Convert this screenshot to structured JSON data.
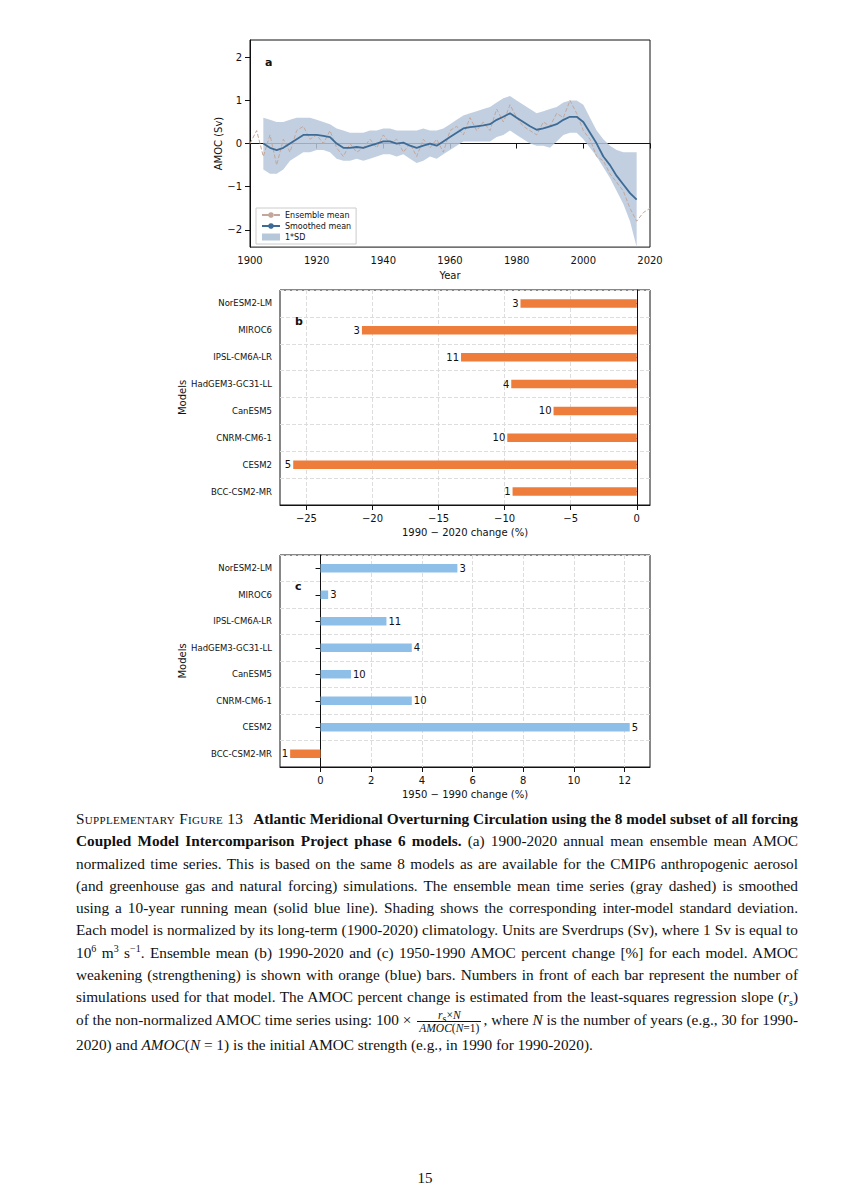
{
  "chart_data": [
    {
      "type": "line",
      "title": "a",
      "xlabel": "Year",
      "ylabel": "AMOC (Sv)",
      "x": [
        1900,
        1902,
        1904,
        1906,
        1908,
        1910,
        1912,
        1914,
        1916,
        1918,
        1920,
        1922,
        1924,
        1926,
        1928,
        1930,
        1932,
        1934,
        1936,
        1938,
        1940,
        1942,
        1944,
        1946,
        1948,
        1950,
        1952,
        1954,
        1956,
        1958,
        1960,
        1962,
        1964,
        1966,
        1968,
        1970,
        1972,
        1974,
        1976,
        1978,
        1980,
        1982,
        1984,
        1986,
        1988,
        1990,
        1992,
        1994,
        1996,
        1998,
        2000,
        2002,
        2004,
        2006,
        2008,
        2010,
        2012,
        2014,
        2016,
        2018,
        2020
      ],
      "series": [
        {
          "name": "Ensemble mean",
          "type": "line",
          "color": "#c4a69a",
          "line_style": "dashed",
          "values": [
            0.0,
            0.3,
            -0.3,
            0.2,
            -0.5,
            0.1,
            -0.2,
            0.3,
            0.4,
            0.1,
            0.2,
            0.0,
            0.3,
            -0.1,
            -0.3,
            0.0,
            -0.2,
            -0.1,
            0.1,
            -0.1,
            0.2,
            0.0,
            0.1,
            -0.2,
            0.0,
            -0.3,
            0.1,
            -0.1,
            0.1,
            -0.2,
            0.3,
            0.4,
            0.2,
            0.6,
            0.3,
            0.5,
            0.3,
            0.8,
            0.5,
            0.9,
            0.6,
            0.4,
            0.3,
            0.2,
            0.5,
            0.4,
            0.7,
            0.6,
            1.0,
            0.7,
            0.3,
            0.1,
            -0.3,
            -0.4,
            -0.7,
            -0.9,
            -1.1,
            -1.5,
            -1.8,
            -1.6,
            -1.5
          ]
        },
        {
          "name": "Smoothed mean",
          "type": "line",
          "color": "#3d6b96",
          "line_style": "solid",
          "values": [
            null,
            null,
            0.0,
            -0.1,
            -0.15,
            -0.1,
            0.0,
            0.1,
            0.2,
            0.2,
            0.2,
            0.18,
            0.15,
            0.0,
            -0.1,
            -0.1,
            -0.08,
            -0.1,
            -0.05,
            0.0,
            0.05,
            0.05,
            0.0,
            0.02,
            -0.05,
            -0.1,
            -0.05,
            0.0,
            -0.05,
            0.05,
            0.15,
            0.25,
            0.35,
            0.38,
            0.4,
            0.42,
            0.45,
            0.55,
            0.62,
            0.7,
            0.6,
            0.5,
            0.4,
            0.32,
            0.35,
            0.4,
            0.45,
            0.55,
            0.62,
            0.62,
            0.5,
            0.25,
            0.0,
            -0.3,
            -0.5,
            -0.75,
            -0.95,
            -1.15,
            -1.3,
            null,
            null
          ]
        },
        {
          "name": "1*SD",
          "type": "band",
          "color": "#b6c7da",
          "lower": [
            null,
            null,
            -0.6,
            -0.7,
            -0.7,
            -0.6,
            -0.4,
            -0.3,
            -0.2,
            -0.2,
            -0.15,
            -0.15,
            -0.2,
            -0.35,
            -0.4,
            -0.4,
            -0.35,
            -0.4,
            -0.35,
            -0.3,
            -0.25,
            -0.25,
            -0.3,
            -0.25,
            -0.35,
            -0.45,
            -0.4,
            -0.3,
            -0.35,
            -0.25,
            -0.15,
            -0.05,
            0.05,
            0.05,
            0.05,
            0.05,
            0.05,
            0.15,
            0.2,
            0.3,
            0.2,
            0.1,
            0.0,
            -0.05,
            -0.05,
            -0.1,
            0.05,
            0.2,
            0.25,
            0.25,
            0.1,
            -0.1,
            -0.3,
            -0.55,
            -0.8,
            -1.1,
            -1.4,
            -1.8,
            -2.4,
            null,
            null
          ],
          "upper": [
            null,
            null,
            0.6,
            0.55,
            0.5,
            0.5,
            0.55,
            0.6,
            0.6,
            0.6,
            0.55,
            0.5,
            0.45,
            0.35,
            0.3,
            0.25,
            0.25,
            0.25,
            0.3,
            0.3,
            0.35,
            0.35,
            0.3,
            0.3,
            0.3,
            0.3,
            0.35,
            0.3,
            0.3,
            0.35,
            0.45,
            0.55,
            0.65,
            0.7,
            0.75,
            0.8,
            0.85,
            0.95,
            1.05,
            1.1,
            1.0,
            0.9,
            0.8,
            0.7,
            0.75,
            0.8,
            0.85,
            0.95,
            1.0,
            1.0,
            0.9,
            0.6,
            0.3,
            0.1,
            -0.05,
            -0.15,
            -0.2,
            -0.2,
            -0.2,
            null,
            null
          ]
        }
      ],
      "xlim": [
        1900,
        2020
      ],
      "xticks": [
        1900,
        1920,
        1940,
        1960,
        1980,
        2000,
        2020
      ],
      "ylim": [
        -2.4,
        2.4
      ],
      "yticks": [
        {
          "value": -2,
          "label": "−2"
        },
        {
          "value": -1,
          "label": "−1"
        },
        0,
        1,
        2
      ],
      "legend": "lower left",
      "grid": false
    },
    {
      "type": "bar",
      "orientation": "horizontal",
      "title": "b",
      "xlabel": "1990 − 2020 change (%)",
      "ylabel": "Models",
      "categories": [
        "BCC-CSM2-MR",
        "CESM2",
        "CNRM-CM6-1",
        "CanESM5",
        "HadGEM3-GC31-LL",
        "IPSL-CM6A-LR",
        "MIROC6",
        "NorESM2-LM"
      ],
      "values": [
        -9.4,
        -26.0,
        -9.8,
        -6.3,
        -9.5,
        -13.3,
        -20.8,
        -8.8
      ],
      "simulations": [
        1,
        5,
        10,
        10,
        4,
        11,
        3,
        3
      ],
      "color": "#ee7d3b",
      "xlim": [
        -27,
        1
      ],
      "xticks": [
        {
          "value": -25,
          "label": "−25"
        },
        {
          "value": -20,
          "label": "−20"
        },
        {
          "value": -15,
          "label": "−15"
        },
        {
          "value": -10,
          "label": "−10"
        },
        {
          "value": -5,
          "label": "−5"
        },
        0
      ],
      "grid": true
    },
    {
      "type": "bar",
      "orientation": "horizontal",
      "title": "c",
      "xlabel": "1950 − 1990 change (%)",
      "ylabel": "Models",
      "categories": [
        "BCC-CSM2-MR",
        "CESM2",
        "CNRM-CM6-1",
        "CanESM5",
        "HadGEM3-GC31-LL",
        "IPSL-CM6A-LR",
        "MIROC6",
        "NorESM2-LM"
      ],
      "values": [
        -1.2,
        12.2,
        3.6,
        1.2,
        3.6,
        2.6,
        0.3,
        5.4
      ],
      "simulations": [
        1,
        5,
        10,
        10,
        4,
        11,
        3,
        3
      ],
      "colors": [
        "#ee7d3b",
        "#8dbfe8",
        "#8dbfe8",
        "#8dbfe8",
        "#8dbfe8",
        "#8dbfe8",
        "#8dbfe8",
        "#8dbfe8"
      ],
      "xlim": [
        -1.6,
        13
      ],
      "xticks": [
        0,
        2,
        4,
        6,
        8,
        10,
        12
      ],
      "grid": true
    }
  ],
  "caption": {
    "label": "Supplementary Figure 13",
    "title": "Atlantic Meridional Overturning Circulation using the 8 model subset of all forcing Coupled Model Intercomparison Project phase 6 models.",
    "body": [
      "(a) 1900-2020 annual mean ensemble mean AMOC normalized time series. This is based on the same 8 models as are available for the CMIP6 anthropogenic aerosol (and greenhouse gas and natural forcing) simulations. The ensemble mean time series (gray dashed) is smoothed using a 10-year running mean (solid blue line). Shading shows the corresponding inter-model standard deviation. Each model is normalized by its long-term (1900-2020) climatology. Units are Sverdrups (Sv), where 1 Sv is equal to 10",
      {
        "sup": "6"
      },
      " m",
      {
        "sup": "3"
      },
      " s",
      {
        "sup": "−1"
      },
      ". Ensemble mean (b) 1990-2020 and (c) 1950-1990 AMOC percent change [%] for each model. AMOC weakening (strengthening) is shown with orange (blue) bars. Numbers in front of each bar represent the number of simulations used for that model. The AMOC percent change is estimated from the least-squares regression slope (",
      {
        "i": "r"
      },
      {
        "sub": "s"
      },
      ") of the non-normalized AMOC time series using: 100 × ",
      {
        "frac": {
          "num": [
            {
              "i": "r"
            },
            {
              "sub": "s"
            },
            "×",
            {
              "i": "N"
            }
          ],
          "den": [
            {
              "i": "AMOC"
            },
            "(",
            {
              "i": "N"
            },
            "=1)"
          ]
        }
      },
      ", where ",
      {
        "i": "N"
      },
      " is the number of years (e.g., 30 for 1990-2020) and ",
      {
        "i": "AMOC"
      },
      "(",
      {
        "i": "N"
      },
      " = 1) is the initial AMOC strength (e.g., in 1990 for 1990-2020)."
    ]
  },
  "page_number": "15"
}
